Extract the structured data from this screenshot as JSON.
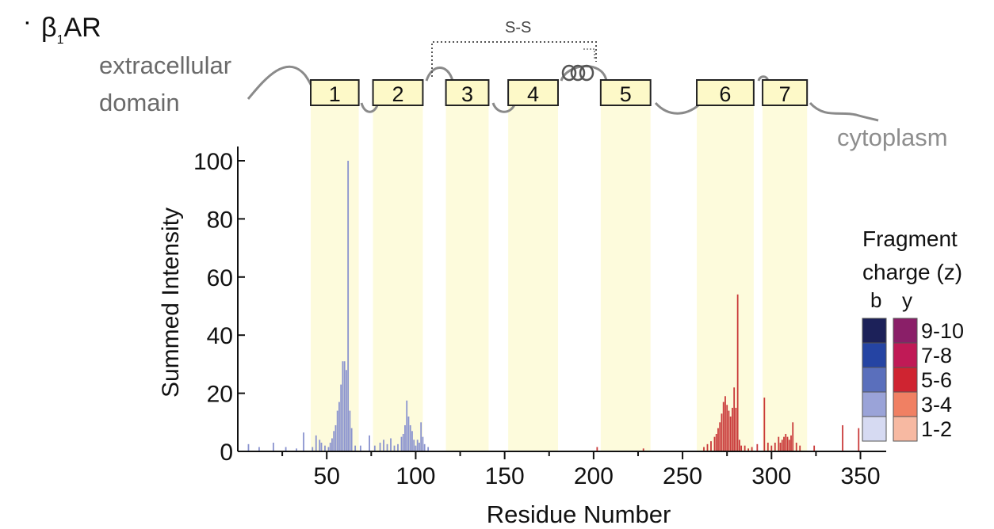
{
  "panel_label": "β",
  "panel_sub": "1",
  "panel_rest": "AR",
  "topology": {
    "extracellular_line1": "extracellular",
    "extracellular_line2": "domain",
    "cytoplasm": "cytoplasm",
    "disulfide": "S-S",
    "helices": [
      {
        "label": "1",
        "start": 41,
        "end": 68
      },
      {
        "label": "2",
        "start": 76,
        "end": 104
      },
      {
        "label": "3",
        "start": 117,
        "end": 141
      },
      {
        "label": "4",
        "start": 152,
        "end": 180
      },
      {
        "label": "5",
        "start": 204,
        "end": 232
      },
      {
        "label": "6",
        "start": 258,
        "end": 290
      },
      {
        "label": "7",
        "start": 295,
        "end": 320
      }
    ]
  },
  "legend": {
    "title_line1": "Fragment",
    "title_line2": "charge (z)",
    "col_b": "b",
    "col_y": "y",
    "rows": [
      {
        "label": "9-10",
        "b_color": "#1c2159",
        "y_color": "#8a1f68"
      },
      {
        "label": "7-8",
        "b_color": "#2544a3",
        "y_color": "#c01a56"
      },
      {
        "label": "5-6",
        "b_color": "#5a6fbc",
        "y_color": "#cf2431"
      },
      {
        "label": "3-4",
        "b_color": "#9aa3d8",
        "y_color": "#f08063"
      },
      {
        "label": "1-2",
        "b_color": "#d6daf2",
        "y_color": "#f7b9a2"
      }
    ]
  },
  "chart_data": {
    "type": "bar",
    "xlabel": "Residue Number",
    "ylabel": "Summed Intensity",
    "xlim": [
      0,
      360
    ],
    "ylim": [
      0,
      100
    ],
    "xticks": [
      50,
      100,
      150,
      200,
      250,
      300,
      350
    ],
    "yticks": [
      0,
      20,
      40,
      60,
      80,
      100
    ],
    "series": [
      {
        "name": "b",
        "color": "#8a93cf",
        "x": [
          6,
          12,
          20,
          27,
          33,
          37,
          42,
          44,
          46,
          47,
          49,
          51,
          52,
          53,
          54,
          55,
          56,
          57,
          58,
          59,
          60,
          61,
          62,
          63,
          64,
          66,
          69,
          74,
          77,
          80,
          82,
          84,
          86,
          88,
          90,
          92,
          93,
          94,
          95,
          96,
          97,
          98,
          99,
          100,
          101,
          102,
          103,
          104,
          105,
          107
        ],
        "values": [
          2.5,
          1.5,
          3,
          1.5,
          1,
          6.5,
          1.5,
          5.5,
          4,
          3,
          2,
          1.5,
          3,
          4.5,
          7,
          9,
          14,
          17,
          23,
          31,
          31,
          28,
          100,
          14,
          8,
          2,
          2,
          5.5,
          2,
          3,
          4,
          2.5,
          4.5,
          2,
          2.5,
          5,
          6,
          9,
          17.5,
          12,
          9,
          7,
          4,
          2,
          4,
          3,
          10,
          5,
          2.5,
          1.5
        ]
      },
      {
        "name": "y",
        "color": "#c93a3a",
        "x": [
          202,
          228,
          262,
          264,
          266,
          268,
          269,
          270,
          271,
          272,
          273,
          274,
          275,
          276,
          277,
          278,
          279,
          280,
          281,
          282,
          283,
          285,
          287,
          289,
          292,
          296,
          298,
          300,
          302,
          304,
          305,
          306,
          307,
          308,
          309,
          310,
          311,
          312,
          314,
          316,
          324,
          340,
          349
        ],
        "values": [
          1.5,
          1,
          1.5,
          2.5,
          3.5,
          5,
          6,
          8,
          10,
          13,
          17,
          19,
          16,
          14,
          12,
          15,
          22,
          15,
          54,
          4,
          2,
          2,
          1,
          1.5,
          2.5,
          18.5,
          3,
          2,
          3,
          5,
          3,
          4,
          5,
          6,
          5,
          4,
          5.5,
          10,
          3,
          2,
          2,
          9,
          8
        ]
      }
    ]
  }
}
